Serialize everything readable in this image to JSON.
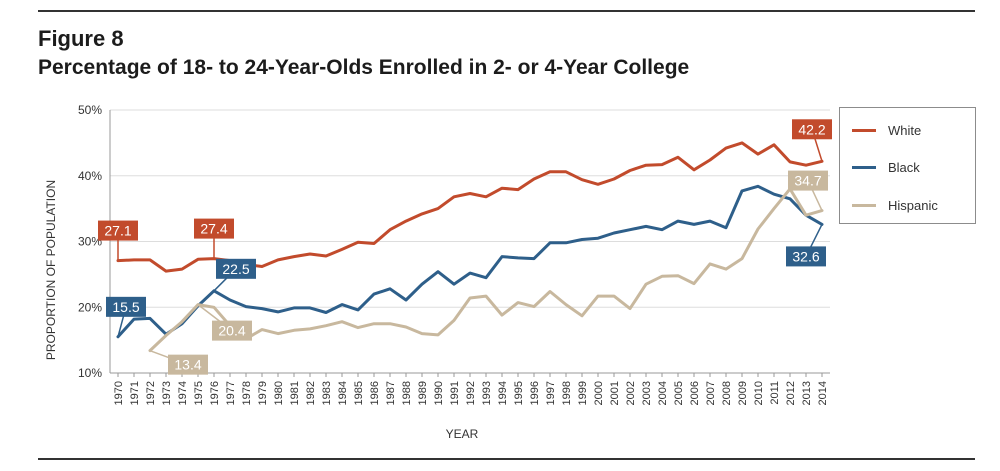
{
  "figure_label": "Figure 8",
  "title": "Percentage of 18- to 24-Year-Olds Enrolled in 2- or 4-Year College",
  "chart_data": {
    "type": "line",
    "title": "Percentage of 18- to 24-Year-Olds Enrolled in 2- or 4-Year College",
    "xlabel": "YEAR",
    "ylabel": "PROPORTION OF POPULATION",
    "ylim": [
      10,
      50
    ],
    "y_ticks": [
      "10%",
      "20%",
      "30%",
      "40%",
      "50%"
    ],
    "x": [
      1970,
      1971,
      1972,
      1973,
      1974,
      1975,
      1976,
      1977,
      1978,
      1979,
      1980,
      1981,
      1982,
      1983,
      1984,
      1985,
      1986,
      1987,
      1988,
      1989,
      1990,
      1991,
      1992,
      1993,
      1994,
      1995,
      1996,
      1997,
      1998,
      1999,
      2000,
      2001,
      2002,
      2003,
      2004,
      2005,
      2006,
      2007,
      2008,
      2009,
      2010,
      2011,
      2012,
      2013,
      2014
    ],
    "grid": "horizontal",
    "legend_position": "right",
    "series": [
      {
        "name": "White",
        "color": "#c24b2c",
        "values": [
          27.1,
          27.2,
          27.2,
          25.5,
          25.8,
          27.3,
          27.4,
          27.1,
          26.5,
          26.2,
          27.2,
          27.7,
          28.1,
          27.8,
          28.8,
          29.9,
          29.7,
          31.8,
          33.1,
          34.2,
          35.0,
          36.8,
          37.3,
          36.8,
          38.1,
          37.9,
          39.5,
          40.6,
          40.6,
          39.4,
          38.7,
          39.5,
          40.8,
          41.6,
          41.7,
          42.8,
          40.9,
          42.4,
          44.2,
          45.0,
          43.3,
          44.7,
          42.1,
          41.6,
          42.2
        ],
        "labels": [
          {
            "index": 0,
            "text": "27.1"
          },
          {
            "index": 6,
            "text": "27.4"
          },
          {
            "index": 44,
            "text": "42.2"
          }
        ]
      },
      {
        "name": "Black",
        "color": "#2e5f8a",
        "values": [
          15.5,
          18.2,
          18.3,
          15.9,
          17.5,
          20.2,
          22.5,
          21.1,
          20.1,
          19.8,
          19.3,
          19.9,
          19.9,
          19.2,
          20.4,
          19.6,
          22.0,
          22.8,
          21.1,
          23.5,
          25.4,
          23.5,
          25.2,
          24.5,
          27.7,
          27.5,
          27.4,
          29.8,
          29.8,
          30.3,
          30.5,
          31.3,
          31.8,
          32.3,
          31.8,
          33.1,
          32.6,
          33.1,
          32.1,
          37.7,
          38.4,
          37.2,
          36.5,
          34.0,
          32.6
        ],
        "labels": [
          {
            "index": 0,
            "text": "15.5"
          },
          {
            "index": 6,
            "text": "22.5"
          },
          {
            "index": 44,
            "text": "32.6"
          }
        ]
      },
      {
        "name": "Hispanic",
        "color": "#c8b89e",
        "values": [
          null,
          null,
          13.4,
          15.7,
          17.8,
          20.4,
          20.0,
          17.2,
          15.2,
          16.6,
          16.0,
          16.5,
          16.7,
          17.2,
          17.8,
          16.9,
          17.5,
          17.5,
          17.0,
          16.0,
          15.8,
          18.0,
          21.4,
          21.7,
          18.8,
          20.7,
          20.1,
          22.4,
          20.4,
          18.7,
          21.7,
          21.7,
          19.8,
          23.5,
          24.7,
          24.8,
          23.6,
          26.6,
          25.8,
          27.4,
          31.9,
          35.0,
          38.0,
          34.0,
          34.7
        ],
        "labels": [
          {
            "index": 2,
            "text": "13.4"
          },
          {
            "index": 5,
            "text": "20.4"
          },
          {
            "index": 44,
            "text": "34.7"
          }
        ]
      }
    ]
  }
}
